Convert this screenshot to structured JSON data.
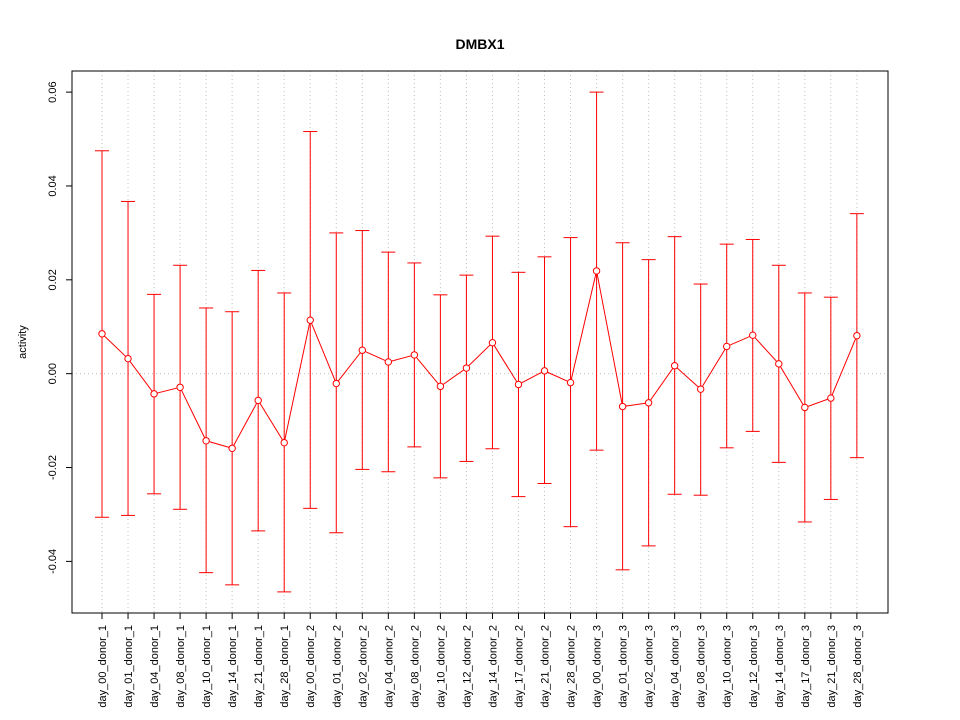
{
  "chart_data": {
    "type": "line",
    "title": "DMBX1",
    "xlabel": "",
    "ylabel": "activity",
    "ylim": [
      -0.051,
      0.0645
    ],
    "yticks": [
      -0.04,
      -0.02,
      0.0,
      0.02,
      0.04,
      0.06
    ],
    "ytick_labels": [
      "-0.04",
      "-0.02",
      "0.00",
      "0.02",
      "0.04",
      "0.06"
    ],
    "grid": true,
    "series_color": "#ff0000",
    "grid_color": "#c0c0c0",
    "categories": [
      "day_00_donor_1",
      "day_01_donor_1",
      "day_04_donor_1",
      "day_08_donor_1",
      "day_10_donor_1",
      "day_14_donor_1",
      "day_21_donor_1",
      "day_28_donor_1",
      "day_00_donor_2",
      "day_01_donor_2",
      "day_02_donor_2",
      "day_04_donor_2",
      "day_08_donor_2",
      "day_10_donor_2",
      "day_12_donor_2",
      "day_14_donor_2",
      "day_17_donor_2",
      "day_21_donor_2",
      "day_28_donor_2",
      "day_00_donor_3",
      "day_01_donor_3",
      "day_02_donor_3",
      "day_04_donor_3",
      "day_08_donor_3",
      "day_10_donor_3",
      "day_12_donor_3",
      "day_14_donor_3",
      "day_17_donor_3",
      "day_21_donor_3",
      "day_28_donor_3"
    ],
    "values": [
      0.0085,
      0.0032,
      -0.0043,
      -0.0029,
      -0.0143,
      -0.0159,
      -0.0057,
      -0.0147,
      0.0114,
      -0.0021,
      0.005,
      0.0025,
      0.004,
      -0.0027,
      0.0012,
      0.0066,
      -0.0023,
      0.0006,
      -0.0019,
      0.0219,
      -0.007,
      -0.0062,
      0.0017,
      -0.0033,
      0.0058,
      0.0082,
      0.0021,
      -0.0072,
      -0.0052,
      0.0081
    ],
    "upper": [
      0.0475,
      0.0367,
      0.0169,
      0.0231,
      0.014,
      0.0132,
      0.022,
      0.0172,
      0.0516,
      0.03,
      0.0305,
      0.0259,
      0.0236,
      0.0168,
      0.021,
      0.0293,
      0.0216,
      0.0249,
      0.029,
      0.06,
      0.0279,
      0.0243,
      0.0292,
      0.0191,
      0.0276,
      0.0286,
      0.0231,
      0.0172,
      0.0163,
      0.0341
    ],
    "lower": [
      -0.0306,
      -0.0302,
      -0.0256,
      -0.0289,
      -0.0424,
      -0.045,
      -0.0335,
      -0.0465,
      -0.0287,
      -0.0339,
      -0.0204,
      -0.0209,
      -0.0156,
      -0.0222,
      -0.0187,
      -0.016,
      -0.0262,
      -0.0234,
      -0.0326,
      -0.0163,
      -0.0418,
      -0.0367,
      -0.0257,
      -0.0259,
      -0.0158,
      -0.0123,
      -0.0189,
      -0.0316,
      -0.0268,
      -0.0179
    ]
  }
}
